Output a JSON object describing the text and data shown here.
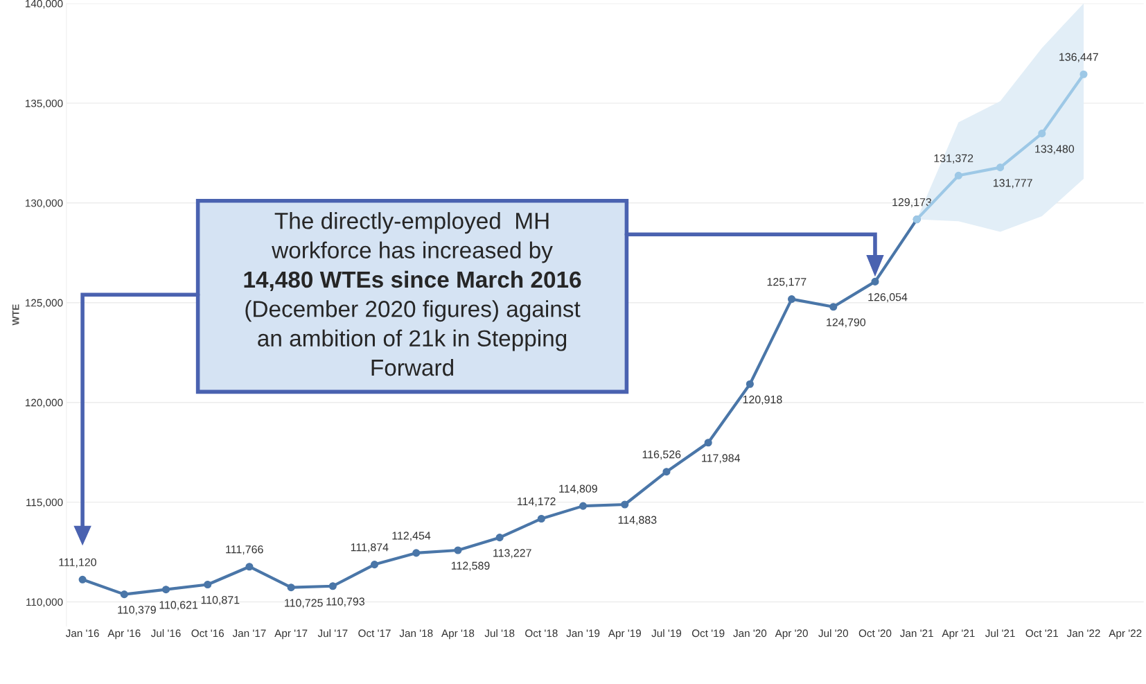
{
  "chart_data": {
    "type": "line",
    "ylabel": "WTE",
    "categories": [
      "Jan '16",
      "Apr '16",
      "Jul '16",
      "Oct '16",
      "Jan '17",
      "Apr '17",
      "Jul '17",
      "Oct '17",
      "Jan '18",
      "Apr '18",
      "Jul '18",
      "Oct '18",
      "Jan '19",
      "Apr '19",
      "Jul '19",
      "Oct '19",
      "Jan '20",
      "Apr '20",
      "Jul '20",
      "Oct '20",
      "Jan '21",
      "Apr '21",
      "Jul '21",
      "Oct '21",
      "Jan '22",
      "Apr '22"
    ],
    "series": [
      {
        "color": "#4a76a8",
        "values": [
          111120,
          110379,
          110621,
          110871,
          111766,
          110725,
          110793,
          111874,
          112454,
          112589,
          113227,
          114172,
          114809,
          114883,
          116526,
          117984,
          120918,
          125177,
          124790,
          126054,
          129173,
          null,
          null,
          null,
          null,
          null
        ],
        "value_labels": [
          "111,120",
          "110,379",
          "110,621",
          "110,871",
          "111,766",
          "110,725",
          "110,793",
          "111,874",
          "112,454",
          "112,589",
          "113,227",
          "114,172",
          "114,809",
          "114,883",
          "116,526",
          "117,984",
          "120,918",
          "125,177",
          "124,790",
          "126,054",
          "129,173",
          null,
          null,
          null,
          null,
          null
        ]
      },
      {
        "color": "#9dc8e6",
        "values": [
          null,
          null,
          null,
          null,
          null,
          null,
          null,
          null,
          null,
          null,
          null,
          null,
          null,
          null,
          null,
          null,
          null,
          null,
          null,
          null,
          129173,
          131372,
          131777,
          133480,
          136447,
          null
        ],
        "lower": [
          null,
          null,
          null,
          null,
          null,
          null,
          null,
          null,
          null,
          null,
          null,
          null,
          null,
          null,
          null,
          null,
          null,
          null,
          null,
          null,
          129173,
          129080,
          128550,
          129330,
          131210,
          null
        ],
        "upper": [
          null,
          null,
          null,
          null,
          null,
          null,
          null,
          null,
          null,
          null,
          null,
          null,
          null,
          null,
          null,
          null,
          null,
          null,
          null,
          null,
          129173,
          134040,
          135100,
          137770,
          140000,
          null
        ],
        "value_labels": [
          null,
          null,
          null,
          null,
          null,
          null,
          null,
          null,
          null,
          null,
          null,
          null,
          null,
          null,
          null,
          null,
          null,
          null,
          null,
          null,
          null,
          "131,372",
          "131,777",
          "133,480",
          "136,447",
          null
        ]
      }
    ],
    "ylim": [
      108800,
      140000
    ],
    "yticks": [
      {
        "value": 110000,
        "label": "110,000"
      },
      {
        "value": 115000,
        "label": "115,000"
      },
      {
        "value": 120000,
        "label": "120,000"
      },
      {
        "value": 125000,
        "label": "125,000"
      },
      {
        "value": 130000,
        "label": "130,000"
      },
      {
        "value": 135000,
        "label": "135,000"
      },
      {
        "value": 140000,
        "label": "140,000"
      }
    ],
    "grid": "y",
    "marker": "circle",
    "line_style": "solid",
    "legend": false,
    "annotations": [
      "The directly-employed  MH",
      "workforce has increased by",
      "14,480 WTEs since March 2016",
      "(December 2020 figures) against",
      "an ambition of 21k in Stepping",
      "Forward"
    ]
  }
}
